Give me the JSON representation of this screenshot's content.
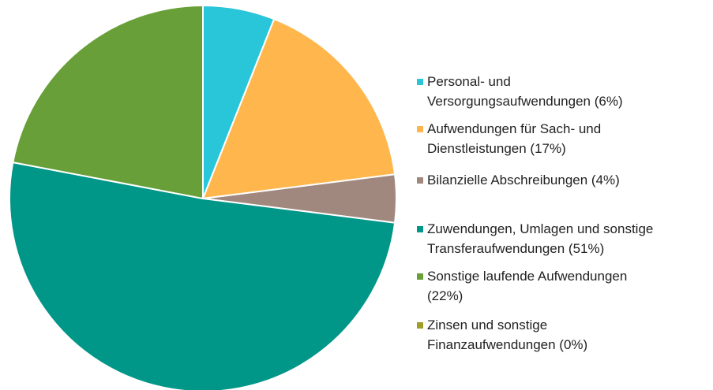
{
  "chart_data": {
    "type": "pie",
    "categories": [
      "Personal- und\nVersorgungsaufwendungen (6%)",
      "Aufwendungen für Sach- und\nDienstleistungen (17%)",
      "Bilanzielle Abschreibungen (4%)",
      "Zuwendungen, Umlagen und sonstige\nTransferaufwendungen (51%)",
      "Sonstige laufende Aufwendungen\n(22%)",
      "Zinsen und sonstige\nFinanzaufwendungen (0%)"
    ],
    "values": [
      6,
      17,
      4,
      51,
      22,
      0
    ],
    "colors": [
      "#29c5d9",
      "#ffb74d",
      "#a1887f",
      "#009688",
      "#689f38",
      "#9e9d24"
    ],
    "legend": "right"
  }
}
